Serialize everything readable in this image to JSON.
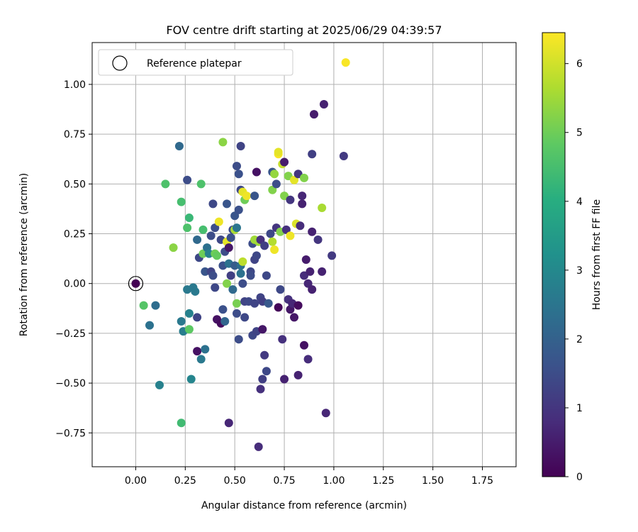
{
  "chart_data": {
    "type": "scatter",
    "title": "FOV centre drift starting at 2025/06/29 04:39:57",
    "xlabel": "Angular distance from reference (arcmin)",
    "ylabel": "Rotation from reference (arcmin)",
    "xlim": [
      -0.22,
      1.92
    ],
    "ylim": [
      -0.92,
      1.21
    ],
    "xticks": [
      0.0,
      0.25,
      0.5,
      0.75,
      1.0,
      1.25,
      1.5,
      1.75
    ],
    "xtick_labels": [
      "0.00",
      "0.25",
      "0.50",
      "0.75",
      "1.00",
      "1.25",
      "1.50",
      "1.75"
    ],
    "yticks": [
      -0.75,
      -0.5,
      -0.25,
      0.0,
      0.25,
      0.5,
      0.75,
      1.0
    ],
    "ytick_labels": [
      "−0.75",
      "−0.50",
      "−0.25",
      "0.00",
      "0.25",
      "0.50",
      "0.75",
      "1.00"
    ],
    "grid": true,
    "colormap": "viridis",
    "colorbar": {
      "label": "Hours from first FF file",
      "min": 0,
      "max": 6.45,
      "ticks": [
        0,
        1,
        2,
        3,
        4,
        5,
        6
      ],
      "tick_labels": [
        "0",
        "1",
        "2",
        "3",
        "4",
        "5",
        "6"
      ]
    },
    "legend": {
      "placement": "upper left",
      "entries": [
        "Reference platepar"
      ]
    },
    "reference_point": {
      "x": 0.0,
      "y": 0.0,
      "marker": "open circle"
    },
    "points": [
      {
        "x": 0.0,
        "y": 0.0,
        "c": 0.0
      },
      {
        "x": 0.04,
        "y": -0.11,
        "c": 4.7
      },
      {
        "x": 0.07,
        "y": -0.21,
        "c": 2.4
      },
      {
        "x": 0.1,
        "y": -0.11,
        "c": 2.3
      },
      {
        "x": 0.12,
        "y": -0.51,
        "c": 2.8
      },
      {
        "x": 0.15,
        "y": 0.5,
        "c": 4.6
      },
      {
        "x": 0.19,
        "y": 0.18,
        "c": 5.3
      },
      {
        "x": 0.22,
        "y": 0.69,
        "c": 2.2
      },
      {
        "x": 0.23,
        "y": -0.7,
        "c": 4.4
      },
      {
        "x": 0.23,
        "y": 0.41,
        "c": 4.5
      },
      {
        "x": 0.23,
        "y": -0.19,
        "c": 2.6
      },
      {
        "x": 0.24,
        "y": -0.24,
        "c": 2.7
      },
      {
        "x": 0.26,
        "y": 0.28,
        "c": 4.6
      },
      {
        "x": 0.26,
        "y": 0.52,
        "c": 1.5
      },
      {
        "x": 0.26,
        "y": -0.03,
        "c": 2.6
      },
      {
        "x": 0.27,
        "y": -0.15,
        "c": 2.8
      },
      {
        "x": 0.27,
        "y": -0.23,
        "c": 4.8
      },
      {
        "x": 0.27,
        "y": 0.33,
        "c": 4.3
      },
      {
        "x": 0.28,
        "y": -0.48,
        "c": 2.9
      },
      {
        "x": 0.29,
        "y": -0.02,
        "c": 2.6
      },
      {
        "x": 0.3,
        "y": -0.04,
        "c": 2.6
      },
      {
        "x": 0.31,
        "y": 0.22,
        "c": 2.2
      },
      {
        "x": 0.31,
        "y": -0.17,
        "c": 1.3
      },
      {
        "x": 0.31,
        "y": -0.34,
        "c": 0.3
      },
      {
        "x": 0.32,
        "y": 0.13,
        "c": 1.4
      },
      {
        "x": 0.33,
        "y": -0.38,
        "c": 2.6
      },
      {
        "x": 0.33,
        "y": 0.5,
        "c": 4.6
      },
      {
        "x": 0.34,
        "y": 0.27,
        "c": 4.5
      },
      {
        "x": 0.34,
        "y": 0.15,
        "c": 5.0
      },
      {
        "x": 0.35,
        "y": -0.33,
        "c": 2.4
      },
      {
        "x": 0.35,
        "y": 0.06,
        "c": 1.7
      },
      {
        "x": 0.36,
        "y": 0.18,
        "c": 2.4
      },
      {
        "x": 0.37,
        "y": 0.15,
        "c": 2.8
      },
      {
        "x": 0.38,
        "y": 0.06,
        "c": 1.3
      },
      {
        "x": 0.38,
        "y": 0.24,
        "c": 1.5
      },
      {
        "x": 0.39,
        "y": 0.04,
        "c": 1.5
      },
      {
        "x": 0.39,
        "y": 0.4,
        "c": 1.4
      },
      {
        "x": 0.4,
        "y": 0.15,
        "c": 5.0
      },
      {
        "x": 0.4,
        "y": 0.28,
        "c": 1.5
      },
      {
        "x": 0.4,
        "y": -0.02,
        "c": 1.4
      },
      {
        "x": 0.41,
        "y": 0.14,
        "c": 4.9
      },
      {
        "x": 0.41,
        "y": -0.18,
        "c": 0.3
      },
      {
        "x": 0.42,
        "y": 0.31,
        "c": 6.3
      },
      {
        "x": 0.43,
        "y": -0.2,
        "c": 0.2
      },
      {
        "x": 0.43,
        "y": 0.22,
        "c": 1.4
      },
      {
        "x": 0.44,
        "y": 0.71,
        "c": 5.3
      },
      {
        "x": 0.44,
        "y": -0.13,
        "c": 1.6
      },
      {
        "x": 0.44,
        "y": 0.09,
        "c": 1.6
      },
      {
        "x": 0.45,
        "y": 0.16,
        "c": 1.5
      },
      {
        "x": 0.45,
        "y": -0.19,
        "c": 2.1
      },
      {
        "x": 0.46,
        "y": 0.4,
        "c": 1.7
      },
      {
        "x": 0.46,
        "y": 0.21,
        "c": 6.2
      },
      {
        "x": 0.46,
        "y": 0.0,
        "c": 5.2
      },
      {
        "x": 0.47,
        "y": -0.7,
        "c": 0.7
      },
      {
        "x": 0.47,
        "y": 0.18,
        "c": 0.4
      },
      {
        "x": 0.47,
        "y": 0.1,
        "c": 2.4
      },
      {
        "x": 0.48,
        "y": 0.23,
        "c": 1.6
      },
      {
        "x": 0.48,
        "y": 0.04,
        "c": 1.2
      },
      {
        "x": 0.49,
        "y": 0.27,
        "c": 1.5
      },
      {
        "x": 0.49,
        "y": -0.03,
        "c": 2.2
      },
      {
        "x": 0.5,
        "y": 0.09,
        "c": 1.9
      },
      {
        "x": 0.5,
        "y": 0.34,
        "c": 1.7
      },
      {
        "x": 0.5,
        "y": 0.27,
        "c": 5.6
      },
      {
        "x": 0.51,
        "y": 0.59,
        "c": 1.5
      },
      {
        "x": 0.51,
        "y": 0.28,
        "c": 2.5
      },
      {
        "x": 0.51,
        "y": -0.1,
        "c": 5.1
      },
      {
        "x": 0.51,
        "y": -0.15,
        "c": 1.5
      },
      {
        "x": 0.52,
        "y": 0.55,
        "c": 1.6
      },
      {
        "x": 0.52,
        "y": -0.28,
        "c": 1.5
      },
      {
        "x": 0.52,
        "y": 0.37,
        "c": 1.6
      },
      {
        "x": 0.53,
        "y": 0.47,
        "c": 1.4
      },
      {
        "x": 0.53,
        "y": 0.69,
        "c": 1.3
      },
      {
        "x": 0.53,
        "y": 0.09,
        "c": 2.3
      },
      {
        "x": 0.53,
        "y": 0.05,
        "c": 2.4
      },
      {
        "x": 0.54,
        "y": 0.11,
        "c": 5.8
      },
      {
        "x": 0.54,
        "y": 0.46,
        "c": 6.2
      },
      {
        "x": 0.54,
        "y": 0.0,
        "c": 1.5
      },
      {
        "x": 0.55,
        "y": -0.09,
        "c": 1.3
      },
      {
        "x": 0.55,
        "y": 0.42,
        "c": 5.0
      },
      {
        "x": 0.55,
        "y": -0.17,
        "c": 1.4
      },
      {
        "x": 0.56,
        "y": 0.44,
        "c": 6.3
      },
      {
        "x": 0.57,
        "y": -0.09,
        "c": 1.4
      },
      {
        "x": 0.58,
        "y": 0.06,
        "c": 1.4
      },
      {
        "x": 0.58,
        "y": 0.04,
        "c": 1.5
      },
      {
        "x": 0.59,
        "y": 0.2,
        "c": 1.5
      },
      {
        "x": 0.59,
        "y": -0.26,
        "c": 1.4
      },
      {
        "x": 0.6,
        "y": 0.12,
        "c": 1.3
      },
      {
        "x": 0.6,
        "y": 0.22,
        "c": 5.5
      },
      {
        "x": 0.6,
        "y": 0.44,
        "c": 1.7
      },
      {
        "x": 0.6,
        "y": -0.1,
        "c": 1.3
      },
      {
        "x": 0.61,
        "y": 0.56,
        "c": 0.3
      },
      {
        "x": 0.61,
        "y": 0.14,
        "c": 1.4
      },
      {
        "x": 0.61,
        "y": -0.24,
        "c": 1.3
      },
      {
        "x": 0.62,
        "y": -0.82,
        "c": 0.8
      },
      {
        "x": 0.62,
        "y": 0.21,
        "c": 5.5
      },
      {
        "x": 0.63,
        "y": 0.22,
        "c": 0.9
      },
      {
        "x": 0.63,
        "y": -0.53,
        "c": 0.9
      },
      {
        "x": 0.63,
        "y": -0.07,
        "c": 1.3
      },
      {
        "x": 0.64,
        "y": -0.09,
        "c": 1.2
      },
      {
        "x": 0.64,
        "y": -0.23,
        "c": 0.4
      },
      {
        "x": 0.64,
        "y": -0.48,
        "c": 1.2
      },
      {
        "x": 0.65,
        "y": -0.36,
        "c": 1.1
      },
      {
        "x": 0.65,
        "y": 0.19,
        "c": 1.2
      },
      {
        "x": 0.66,
        "y": -0.44,
        "c": 1.4
      },
      {
        "x": 0.66,
        "y": 0.04,
        "c": 1.4
      },
      {
        "x": 0.67,
        "y": -0.1,
        "c": 1.8
      },
      {
        "x": 0.68,
        "y": 0.25,
        "c": 1.4
      },
      {
        "x": 0.69,
        "y": 0.47,
        "c": 5.2
      },
      {
        "x": 0.69,
        "y": 0.21,
        "c": 5.7
      },
      {
        "x": 0.69,
        "y": 0.56,
        "c": 1.7
      },
      {
        "x": 0.7,
        "y": 0.55,
        "c": 5.4
      },
      {
        "x": 0.7,
        "y": 0.17,
        "c": 6.3
      },
      {
        "x": 0.71,
        "y": 0.28,
        "c": 1.0
      },
      {
        "x": 0.71,
        "y": 0.5,
        "c": 1.5
      },
      {
        "x": 0.72,
        "y": 0.65,
        "c": 6.4
      },
      {
        "x": 0.72,
        "y": 0.66,
        "c": 6.2
      },
      {
        "x": 0.72,
        "y": -0.12,
        "c": 0.1
      },
      {
        "x": 0.73,
        "y": 0.26,
        "c": 5.2
      },
      {
        "x": 0.73,
        "y": -0.03,
        "c": 1.4
      },
      {
        "x": 0.74,
        "y": 0.6,
        "c": 5.9
      },
      {
        "x": 0.74,
        "y": -0.28,
        "c": 0.9
      },
      {
        "x": 0.75,
        "y": 0.61,
        "c": 0.5
      },
      {
        "x": 0.75,
        "y": 0.44,
        "c": 5.2
      },
      {
        "x": 0.75,
        "y": -0.48,
        "c": 0.6
      },
      {
        "x": 0.76,
        "y": 0.27,
        "c": 0.9
      },
      {
        "x": 0.77,
        "y": 0.54,
        "c": 5.2
      },
      {
        "x": 0.77,
        "y": -0.08,
        "c": 0.9
      },
      {
        "x": 0.78,
        "y": 0.42,
        "c": 1.0
      },
      {
        "x": 0.78,
        "y": 0.24,
        "c": 6.3
      },
      {
        "x": 0.78,
        "y": -0.13,
        "c": 0.4
      },
      {
        "x": 0.79,
        "y": -0.1,
        "c": 0.7
      },
      {
        "x": 0.8,
        "y": 0.52,
        "c": 6.2
      },
      {
        "x": 0.8,
        "y": -0.17,
        "c": 0.4
      },
      {
        "x": 0.81,
        "y": 0.3,
        "c": 6.1
      },
      {
        "x": 0.82,
        "y": 0.55,
        "c": 1.0
      },
      {
        "x": 0.82,
        "y": -0.11,
        "c": 0.2
      },
      {
        "x": 0.82,
        "y": -0.46,
        "c": 0.6
      },
      {
        "x": 0.83,
        "y": 0.29,
        "c": 0.8
      },
      {
        "x": 0.84,
        "y": 0.44,
        "c": 0.7
      },
      {
        "x": 0.84,
        "y": 0.4,
        "c": 0.6
      },
      {
        "x": 0.85,
        "y": 0.53,
        "c": 5.2
      },
      {
        "x": 0.85,
        "y": 0.04,
        "c": 0.8
      },
      {
        "x": 0.85,
        "y": -0.31,
        "c": 0.3
      },
      {
        "x": 0.86,
        "y": 0.12,
        "c": 0.5
      },
      {
        "x": 0.87,
        "y": -0.38,
        "c": 0.8
      },
      {
        "x": 0.87,
        "y": 0.0,
        "c": 0.7
      },
      {
        "x": 0.88,
        "y": 0.06,
        "c": 0.6
      },
      {
        "x": 0.89,
        "y": 0.26,
        "c": 0.6
      },
      {
        "x": 0.89,
        "y": 0.65,
        "c": 1.2
      },
      {
        "x": 0.89,
        "y": -0.03,
        "c": 0.6
      },
      {
        "x": 0.9,
        "y": 0.85,
        "c": 0.5
      },
      {
        "x": 0.92,
        "y": 0.22,
        "c": 1.0
      },
      {
        "x": 0.94,
        "y": 0.06,
        "c": 0.6
      },
      {
        "x": 0.94,
        "y": 0.38,
        "c": 5.6
      },
      {
        "x": 0.95,
        "y": 0.9,
        "c": 0.6
      },
      {
        "x": 0.96,
        "y": -0.65,
        "c": 0.7
      },
      {
        "x": 0.99,
        "y": 0.14,
        "c": 1.1
      },
      {
        "x": 1.05,
        "y": 0.64,
        "c": 1.1
      },
      {
        "x": 1.06,
        "y": 1.11,
        "c": 6.4
      }
    ]
  }
}
